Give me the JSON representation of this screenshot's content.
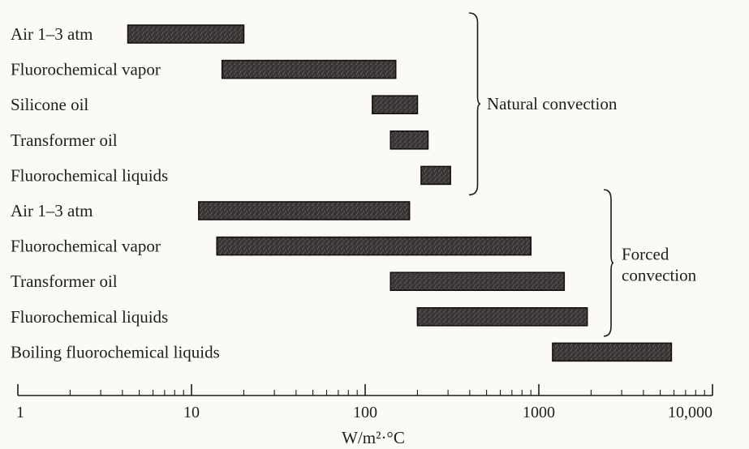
{
  "chart_data": {
    "type": "bar",
    "orientation": "horizontal",
    "scale": "log",
    "xlim": [
      1,
      10000
    ],
    "xlabel": "W/m²·°C",
    "x_tick_labels": [
      {
        "value": 1,
        "label": "1"
      },
      {
        "value": 10,
        "label": "10"
      },
      {
        "value": 100,
        "label": "100"
      },
      {
        "value": 1000,
        "label": "1000"
      },
      {
        "value": 10000,
        "label": "10,000"
      }
    ],
    "categories": [
      "Air 1–3 atm",
      "Fluorochemical vapor",
      "Silicone oil",
      "Transformer oil",
      "Fluorochemical liquids",
      "Air 1–3 atm",
      "Fluorochemical vapor",
      "Transformer oil",
      "Fluorochemical liquids",
      "Boiling fluorochemical liquids"
    ],
    "ranges": [
      [
        4.3,
        20
      ],
      [
        15,
        150
      ],
      [
        110,
        200
      ],
      [
        140,
        230
      ],
      [
        210,
        310
      ],
      [
        11,
        180
      ],
      [
        14,
        900
      ],
      [
        140,
        1400
      ],
      [
        200,
        1900
      ],
      [
        1200,
        5800
      ]
    ],
    "groups": [
      {
        "label": "Natural convection",
        "start": 0,
        "end": 4
      },
      {
        "label": "Forced convection",
        "start": 5,
        "end": 8
      }
    ],
    "colors": {
      "bar": "#3a3636",
      "bar_edge": "#141212",
      "text": "#1e1e1e",
      "axis": "#1c1c1c"
    }
  }
}
